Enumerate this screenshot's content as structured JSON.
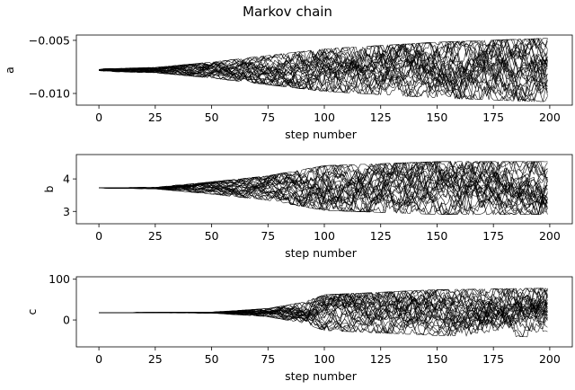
{
  "figure": {
    "title": "Markov chain"
  },
  "chart_data": [
    {
      "type": "line",
      "panel": "a",
      "xlabel": "step number",
      "ylabel": "a",
      "xlim": [
        -10,
        210
      ],
      "ylim": [
        -0.0111,
        -0.0045
      ],
      "x_ticks": [
        0,
        25,
        50,
        75,
        100,
        125,
        150,
        175,
        200
      ],
      "y_ticks": [
        -0.01,
        -0.005
      ],
      "y_tick_labels": [
        "−0.010",
        "−0.005"
      ],
      "n_walkers": 32,
      "n_steps": 200,
      "start_value": -0.0078,
      "spread_envelope": [
        {
          "step": 0,
          "half_width": 0.0001
        },
        {
          "step": 25,
          "half_width": 0.0002
        },
        {
          "step": 50,
          "half_width": 0.0006
        },
        {
          "step": 75,
          "half_width": 0.0011
        },
        {
          "step": 100,
          "half_width": 0.0016
        },
        {
          "step": 150,
          "half_width": 0.0021
        },
        {
          "step": 200,
          "half_width": 0.0024
        }
      ],
      "line_color": "#000000"
    },
    {
      "type": "line",
      "panel": "b",
      "xlabel": "step number",
      "ylabel": "b",
      "xlim": [
        -10,
        210
      ],
      "ylim": [
        2.62,
        4.75
      ],
      "x_ticks": [
        0,
        25,
        50,
        75,
        100,
        125,
        150,
        175,
        200
      ],
      "y_ticks": [
        3,
        4
      ],
      "y_tick_labels": [
        "3",
        "4"
      ],
      "n_walkers": 32,
      "n_steps": 200,
      "start_value": 3.72,
      "spread_envelope": [
        {
          "step": 0,
          "half_width": 0.0
        },
        {
          "step": 25,
          "half_width": 0.02
        },
        {
          "step": 50,
          "half_width": 0.15
        },
        {
          "step": 75,
          "half_width": 0.3
        },
        {
          "step": 100,
          "half_width": 0.55
        },
        {
          "step": 150,
          "half_width": 0.65
        },
        {
          "step": 200,
          "half_width": 0.65
        }
      ],
      "line_color": "#000000"
    },
    {
      "type": "line",
      "panel": "c",
      "xlabel": "step number",
      "ylabel": "c",
      "xlim": [
        -10,
        210
      ],
      "ylim": [
        -66,
        106
      ],
      "x_ticks": [
        0,
        25,
        50,
        75,
        100,
        125,
        150,
        175,
        200
      ],
      "y_ticks": [
        0,
        100
      ],
      "y_tick_labels": [
        "0",
        "100"
      ],
      "n_walkers": 32,
      "n_steps": 200,
      "start_value": 18,
      "spread_envelope": [
        {
          "step": 0,
          "half_width": 0
        },
        {
          "step": 50,
          "half_width": 1
        },
        {
          "step": 75,
          "half_width": 8
        },
        {
          "step": 90,
          "half_width": 20
        },
        {
          "step": 100,
          "half_width": 35
        },
        {
          "step": 150,
          "half_width": 45
        },
        {
          "step": 200,
          "half_width": 48
        }
      ],
      "line_color": "#000000"
    }
  ]
}
